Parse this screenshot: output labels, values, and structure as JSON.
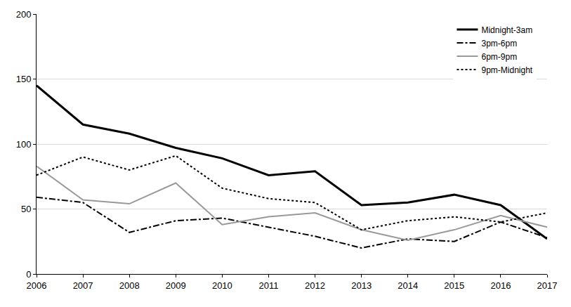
{
  "chart_data": {
    "type": "line",
    "x": [
      2006,
      2007,
      2008,
      2009,
      2010,
      2011,
      2012,
      2013,
      2014,
      2015,
      2016,
      2017
    ],
    "xlim": [
      2006,
      2017
    ],
    "xticks": [
      2006,
      2007,
      2008,
      2009,
      2010,
      2011,
      2012,
      2013,
      2014,
      2015,
      2016,
      2017
    ],
    "ylim": [
      0,
      200
    ],
    "yticks": [
      0,
      50,
      100,
      150,
      200
    ],
    "grid": true,
    "legend": "top right",
    "series": [
      {
        "name": "Midnight-3am",
        "color": "#000000",
        "line_style": "solid",
        "values": [
          145,
          115,
          108,
          97,
          89,
          76,
          79,
          53,
          55,
          61,
          53,
          27
        ]
      },
      {
        "name": "3pm-6pm",
        "color": "#000000",
        "line_style": "dashdot",
        "values": [
          59,
          55,
          32,
          41,
          43,
          36,
          29,
          20,
          27,
          25,
          40,
          28
        ]
      },
      {
        "name": "6pm-9pm",
        "color": "#999999",
        "line_style": "solid",
        "values": [
          83,
          57,
          54,
          70,
          38,
          44,
          47,
          34,
          26,
          34,
          45,
          36
        ]
      },
      {
        "name": "9pm-Midnight",
        "color": "#000000",
        "line_style": "dot",
        "values": [
          76,
          90,
          80,
          91,
          66,
          58,
          55,
          34,
          41,
          44,
          40,
          47
        ]
      }
    ]
  }
}
